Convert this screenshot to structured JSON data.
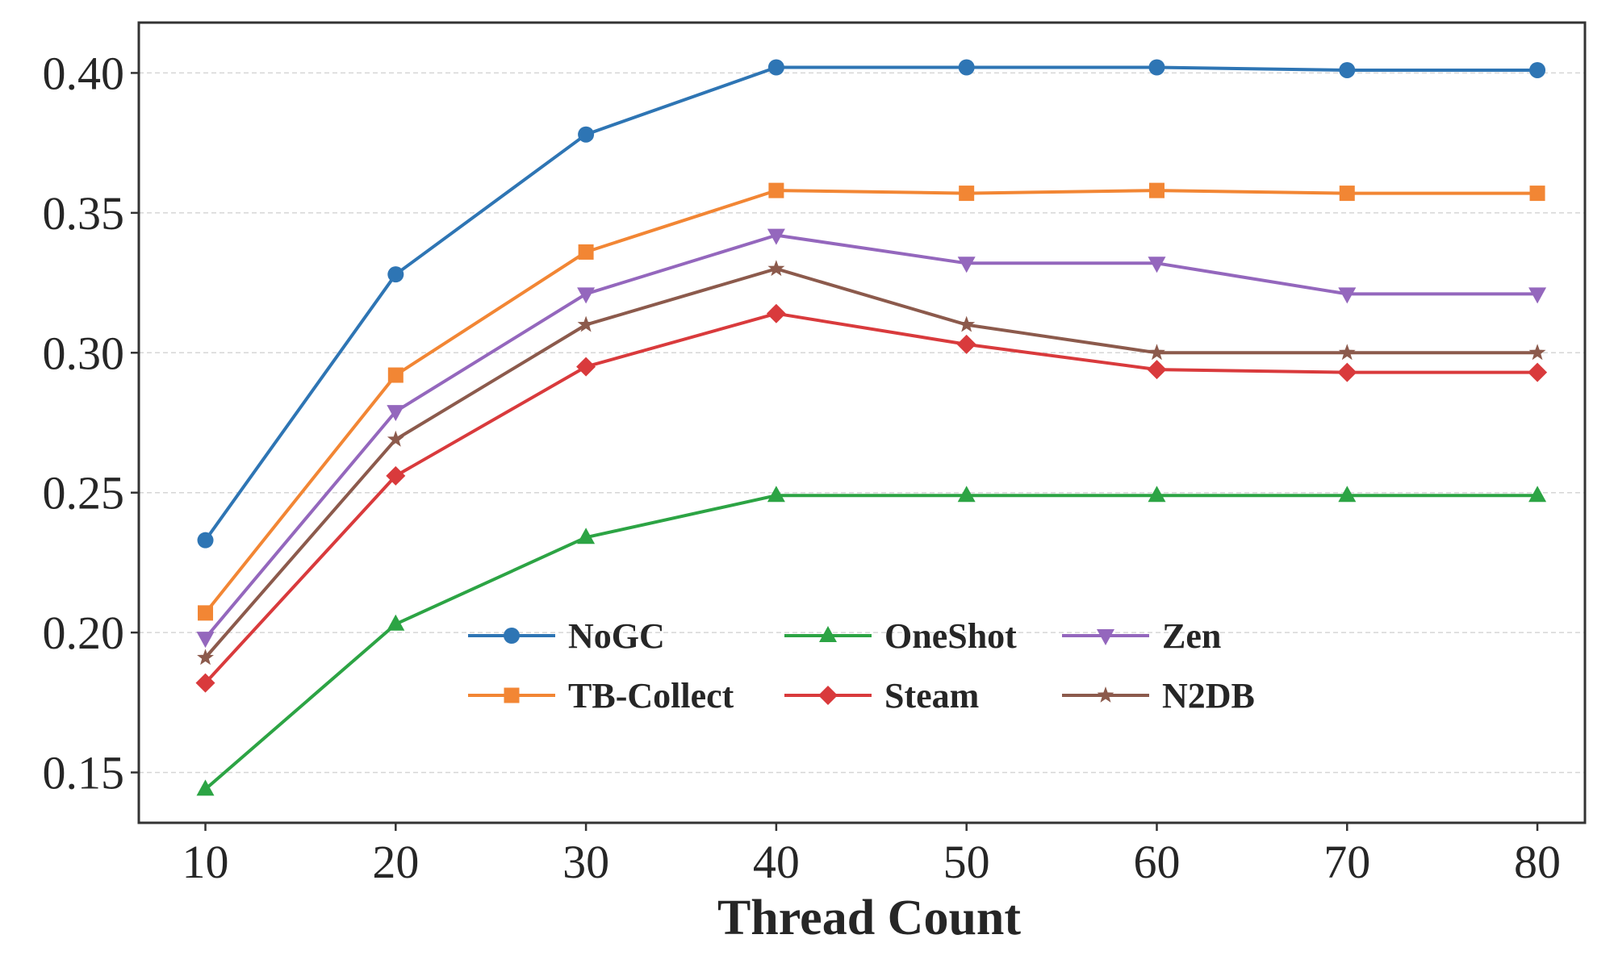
{
  "chart_data": {
    "type": "line",
    "title": "",
    "xlabel": "Thread Count",
    "ylabel": "",
    "x": [
      10,
      20,
      30,
      40,
      50,
      60,
      70,
      80
    ],
    "xticks": [
      "10",
      "20",
      "30",
      "40",
      "50",
      "60",
      "70",
      "80"
    ],
    "yticks": [
      "0.15",
      "0.20",
      "0.25",
      "0.30",
      "0.35",
      "0.40"
    ],
    "xlim": [
      6.5,
      82.5
    ],
    "ylim": [
      0.132,
      0.418
    ],
    "grid": true,
    "legend_position": "lower-center",
    "series": [
      {
        "name": "NoGC",
        "color": "#2e75b4",
        "marker": "circle",
        "values": [
          0.233,
          0.328,
          0.378,
          0.402,
          0.402,
          0.402,
          0.401,
          0.401
        ]
      },
      {
        "name": "TB-Collect",
        "color": "#f28634",
        "marker": "square",
        "values": [
          0.207,
          0.292,
          0.336,
          0.358,
          0.357,
          0.358,
          0.357,
          0.357
        ]
      },
      {
        "name": "OneShot",
        "color": "#2ca444",
        "marker": "triangle-up",
        "values": [
          0.144,
          0.203,
          0.234,
          0.249,
          0.249,
          0.249,
          0.249,
          0.249
        ]
      },
      {
        "name": "Steam",
        "color": "#d93a3c",
        "marker": "diamond",
        "values": [
          0.182,
          0.256,
          0.295,
          0.314,
          0.303,
          0.294,
          0.293,
          0.293
        ]
      },
      {
        "name": "Zen",
        "color": "#9467bd",
        "marker": "triangle-down",
        "values": [
          0.198,
          0.279,
          0.321,
          0.342,
          0.332,
          0.332,
          0.321,
          0.321
        ]
      },
      {
        "name": "N2DB",
        "color": "#8c5a4c",
        "marker": "star",
        "values": [
          0.191,
          0.269,
          0.31,
          0.33,
          0.31,
          0.3,
          0.3,
          0.3
        ]
      }
    ]
  }
}
